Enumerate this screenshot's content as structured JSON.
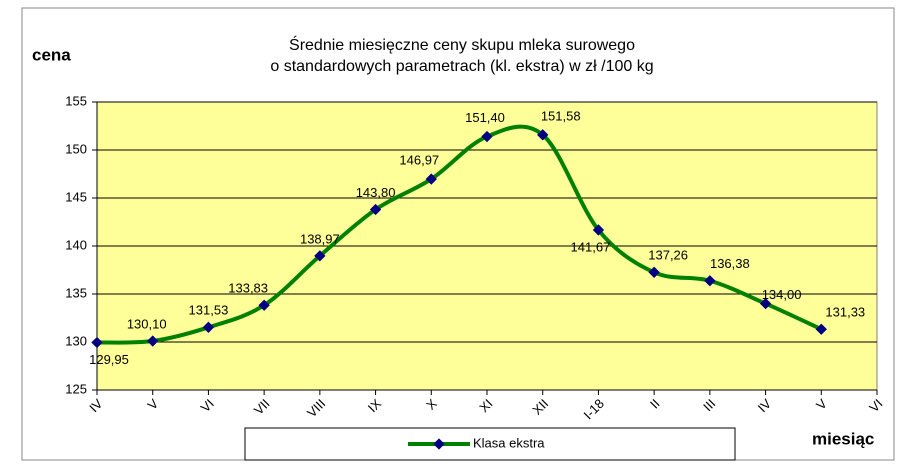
{
  "chart_data": {
    "type": "line",
    "title": [
      "Średnie miesięczne ceny skupu mleka surowego",
      "o standardowych parametrach (kl. ekstra) w zł /100 kg"
    ],
    "y_label": "cena",
    "x_label": "miesiąc",
    "categories": [
      "IV",
      "V",
      "VI",
      "VII",
      "VIII",
      "IX",
      "X",
      "XI",
      "XII",
      "I-18",
      "II",
      "III",
      "IV",
      "V",
      "VI"
    ],
    "series": [
      {
        "name": "Klasa ekstra",
        "color": "#008000",
        "marker_color": "#000080",
        "values": [
          129.95,
          130.1,
          131.53,
          133.83,
          138.97,
          143.8,
          146.97,
          151.4,
          151.58,
          141.67,
          137.26,
          136.38,
          134.0,
          131.33,
          null
        ],
        "value_labels": [
          "129,95",
          "130,10",
          "131,53",
          "133,83",
          "138,97",
          "143,80",
          "146,97",
          "151,40",
          "151,58",
          "141,67",
          "137,26",
          "136,38",
          "134,00",
          "131,33",
          null
        ]
      }
    ],
    "ylim": [
      125,
      155
    ],
    "yticks": [
      125,
      130,
      135,
      140,
      145,
      150,
      155
    ],
    "grid": true,
    "smooth": true,
    "plot_background": "#ffff99"
  }
}
